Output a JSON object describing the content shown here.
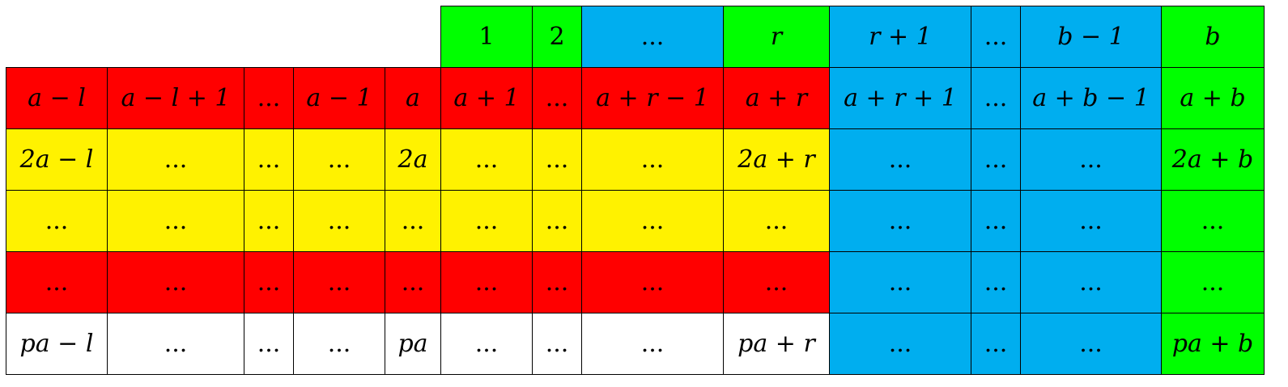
{
  "colors": {
    "red": "#ff0000",
    "yellow": "#fff200",
    "green": "#00ff00",
    "blue": "#00aeef",
    "white": "#ffffff"
  },
  "header_row": [
    {
      "text": "1",
      "color": "green"
    },
    {
      "text": "2",
      "color": "green"
    },
    {
      "text": "...",
      "color": "blue"
    },
    {
      "text": "r",
      "color": "green"
    },
    {
      "text": "r + 1",
      "color": "blue"
    },
    {
      "text": "...",
      "color": "blue"
    },
    {
      "text": "b − 1",
      "color": "blue"
    },
    {
      "text": "b",
      "color": "green"
    }
  ],
  "rows": [
    [
      {
        "text": "a − l",
        "color": "red"
      },
      {
        "text": "a − l + 1",
        "color": "red"
      },
      {
        "text": "...",
        "color": "red"
      },
      {
        "text": "a − 1",
        "color": "red"
      },
      {
        "text": "a",
        "color": "red"
      },
      {
        "text": "a + 1",
        "color": "red"
      },
      {
        "text": "...",
        "color": "red"
      },
      {
        "text": "a + r − 1",
        "color": "red"
      },
      {
        "text": "a + r",
        "color": "red"
      },
      {
        "text": "a + r + 1",
        "color": "blue"
      },
      {
        "text": "...",
        "color": "blue"
      },
      {
        "text": "a + b − 1",
        "color": "blue"
      },
      {
        "text": "a + b",
        "color": "green"
      }
    ],
    [
      {
        "text": "2a − l",
        "color": "yellow"
      },
      {
        "text": "...",
        "color": "yellow"
      },
      {
        "text": "...",
        "color": "yellow"
      },
      {
        "text": "...",
        "color": "yellow"
      },
      {
        "text": "2a",
        "color": "yellow"
      },
      {
        "text": "...",
        "color": "yellow"
      },
      {
        "text": "...",
        "color": "yellow"
      },
      {
        "text": "...",
        "color": "yellow"
      },
      {
        "text": "2a + r",
        "color": "yellow"
      },
      {
        "text": "...",
        "color": "blue"
      },
      {
        "text": "...",
        "color": "blue"
      },
      {
        "text": "...",
        "color": "blue"
      },
      {
        "text": "2a + b",
        "color": "green"
      }
    ],
    [
      {
        "text": "...",
        "color": "yellow"
      },
      {
        "text": "...",
        "color": "yellow"
      },
      {
        "text": "...",
        "color": "yellow"
      },
      {
        "text": "...",
        "color": "yellow"
      },
      {
        "text": "...",
        "color": "yellow"
      },
      {
        "text": "...",
        "color": "yellow"
      },
      {
        "text": "...",
        "color": "yellow"
      },
      {
        "text": "...",
        "color": "yellow"
      },
      {
        "text": "...",
        "color": "yellow"
      },
      {
        "text": "...",
        "color": "blue"
      },
      {
        "text": "...",
        "color": "blue"
      },
      {
        "text": "...",
        "color": "blue"
      },
      {
        "text": "...",
        "color": "green"
      }
    ],
    [
      {
        "text": "...",
        "color": "red"
      },
      {
        "text": "...",
        "color": "red"
      },
      {
        "text": "...",
        "color": "red"
      },
      {
        "text": "...",
        "color": "red"
      },
      {
        "text": "...",
        "color": "red"
      },
      {
        "text": "...",
        "color": "red"
      },
      {
        "text": "...",
        "color": "red"
      },
      {
        "text": "...",
        "color": "red"
      },
      {
        "text": "...",
        "color": "red"
      },
      {
        "text": "...",
        "color": "blue"
      },
      {
        "text": "...",
        "color": "blue"
      },
      {
        "text": "...",
        "color": "blue"
      },
      {
        "text": "...",
        "color": "green"
      }
    ],
    [
      {
        "text": "pa − l",
        "color": "white"
      },
      {
        "text": "...",
        "color": "white"
      },
      {
        "text": "...",
        "color": "white"
      },
      {
        "text": "...",
        "color": "white"
      },
      {
        "text": "pa",
        "color": "white"
      },
      {
        "text": "...",
        "color": "white"
      },
      {
        "text": "...",
        "color": "white"
      },
      {
        "text": "...",
        "color": "white"
      },
      {
        "text": "pa + r",
        "color": "white"
      },
      {
        "text": "...",
        "color": "blue"
      },
      {
        "text": "...",
        "color": "blue"
      },
      {
        "text": "...",
        "color": "blue"
      },
      {
        "text": "pa + b",
        "color": "green"
      }
    ]
  ]
}
